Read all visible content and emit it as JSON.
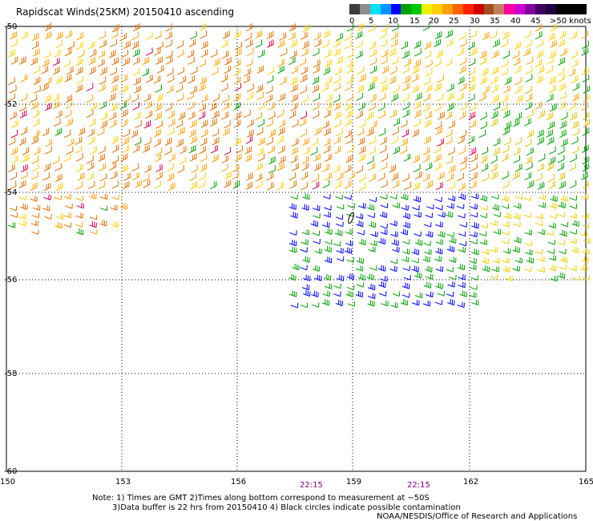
{
  "title": "Rapidscat Winds(25KM) 20150410 ascending",
  "legend": {
    "labels": [
      "0",
      "5",
      "10",
      "15",
      "20",
      "25",
      "30",
      "35",
      "40",
      "45",
      ">50 knots"
    ],
    "colors": [
      "#3c3c3c",
      "#8c8c8c",
      "#00e0ff",
      "#0096ff",
      "#0000ff",
      "#00a000",
      "#00c800",
      "#f0f000",
      "#ffd000",
      "#ffa000",
      "#ff6000",
      "#ff2000",
      "#d00000",
      "#a05020",
      "#c08060",
      "#ff00a0",
      "#d000d0",
      "#8000a0",
      "#400060",
      "#200040",
      "#000000",
      "#000000",
      "#000000"
    ]
  },
  "axes": {
    "x_ticks": [
      "150",
      "153",
      "156",
      "159",
      "162",
      "165"
    ],
    "y_ticks": [
      "-50",
      "-52",
      "-54",
      "-56",
      "-58",
      "-60"
    ]
  },
  "times": [
    "22:15",
    "22:15"
  ],
  "footer": {
    "line1": "Note: 1) Times are GMT 2)Times along bottom correspond to measurement at ~50S",
    "line2": "3)Data buffer is 22 hrs from 20150410 4) Black circles indicate possible contamination",
    "line3": "NOAA/NESDIS/Office of Research and Applications"
  }
}
